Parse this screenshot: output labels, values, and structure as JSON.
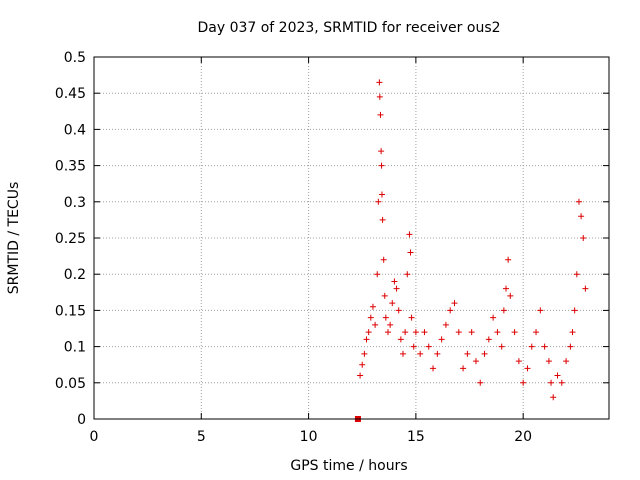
{
  "chart_data": {
    "type": "scatter",
    "title": "Day 037 of 2023, SRMTID for receiver ous2",
    "xlabel": "GPS time / hours",
    "ylabel": "SRMTID / TECUs",
    "xlim": [
      0,
      24
    ],
    "ylim": [
      0,
      0.5
    ],
    "grid": true,
    "x_ticks": [
      0,
      5,
      10,
      15,
      20
    ],
    "x_tick_labels": [
      "0",
      "5",
      "10",
      "15",
      "20"
    ],
    "y_ticks": [
      0,
      0.05,
      0.1,
      0.15,
      0.2,
      0.25,
      0.3,
      0.35,
      0.4,
      0.45,
      0.5
    ],
    "y_tick_labels": [
      "0",
      "0.05",
      "0.1",
      "0.15",
      "0.2",
      "0.25",
      "0.3",
      "0.35",
      "0.4",
      "0.45",
      "0.5"
    ],
    "marker_color": "#dd0000",
    "series": [
      {
        "name": "SRMTID",
        "marker": "plus",
        "x": [
          12.4,
          12.5,
          12.6,
          12.7,
          12.8,
          12.9,
          13.0,
          13.1,
          13.2,
          13.25,
          13.3,
          13.32,
          13.35,
          13.38,
          13.4,
          13.42,
          13.45,
          13.5,
          13.55,
          13.6,
          13.7,
          13.8,
          13.9,
          14.0,
          14.1,
          14.2,
          14.3,
          14.4,
          14.5,
          14.6,
          14.7,
          14.75,
          14.8,
          14.9,
          15.0,
          15.2,
          15.4,
          15.6,
          15.8,
          16.0,
          16.2,
          16.4,
          16.6,
          16.8,
          17.0,
          17.2,
          17.4,
          17.6,
          17.8,
          18.0,
          18.2,
          18.4,
          18.6,
          18.8,
          19.0,
          19.1,
          19.2,
          19.3,
          19.4,
          19.6,
          19.8,
          20.0,
          20.2,
          20.4,
          20.6,
          20.8,
          21.0,
          21.2,
          21.3,
          21.4,
          21.6,
          21.8,
          22.0,
          22.2,
          22.3,
          22.4,
          22.5,
          22.6,
          22.7,
          22.8,
          22.9
        ],
        "y": [
          0.06,
          0.075,
          0.09,
          0.11,
          0.12,
          0.14,
          0.155,
          0.13,
          0.2,
          0.3,
          0.465,
          0.445,
          0.42,
          0.37,
          0.35,
          0.31,
          0.275,
          0.22,
          0.17,
          0.14,
          0.12,
          0.13,
          0.16,
          0.19,
          0.18,
          0.15,
          0.11,
          0.09,
          0.12,
          0.2,
          0.255,
          0.23,
          0.14,
          0.1,
          0.12,
          0.09,
          0.12,
          0.1,
          0.07,
          0.09,
          0.11,
          0.13,
          0.15,
          0.16,
          0.12,
          0.07,
          0.09,
          0.12,
          0.08,
          0.05,
          0.09,
          0.11,
          0.14,
          0.12,
          0.1,
          0.15,
          0.18,
          0.22,
          0.17,
          0.12,
          0.08,
          0.05,
          0.07,
          0.1,
          0.12,
          0.15,
          0.1,
          0.08,
          0.05,
          0.03,
          0.06,
          0.05,
          0.08,
          0.1,
          0.12,
          0.15,
          0.2,
          0.3,
          0.28,
          0.25,
          0.18
        ]
      },
      {
        "name": "zero-marker",
        "marker": "square",
        "x": [
          12.3
        ],
        "y": [
          0.0
        ]
      }
    ]
  }
}
